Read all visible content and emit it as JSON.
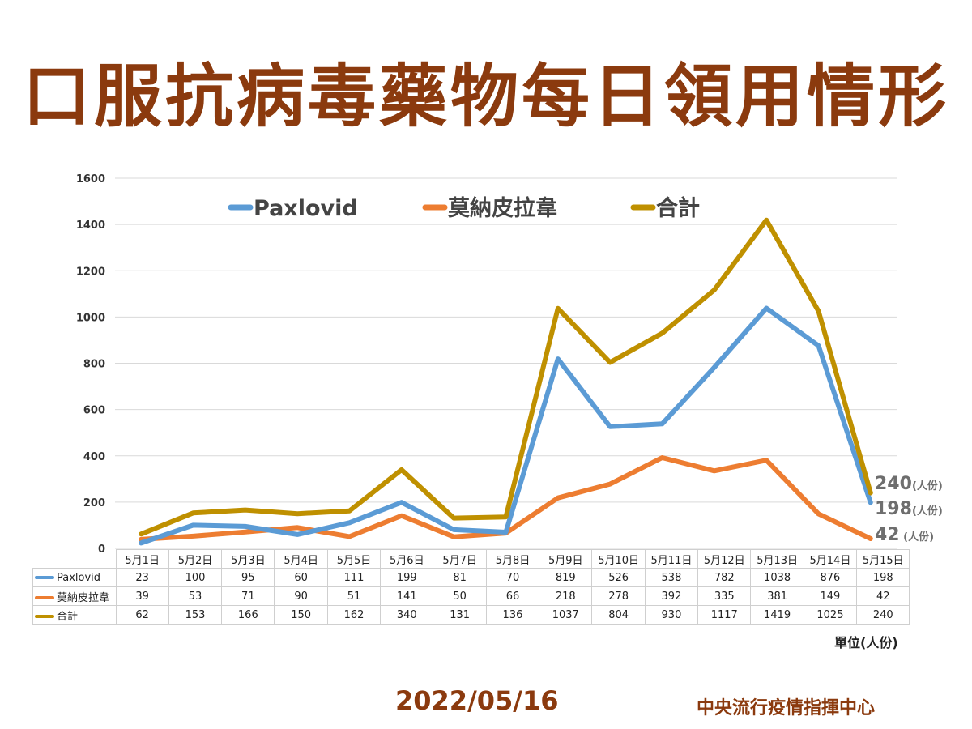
{
  "title": "口服抗病毒藥物每日領用情形",
  "date": "2022/05/16",
  "org": "中央流行疫情指揮中心",
  "unit_label": "單位(人份)",
  "colors": {
    "paxlovid": "#5b9bd5",
    "molnupiravir": "#ed7d31",
    "total": "#bf9000",
    "title": "#8b3a0e"
  },
  "chart_data": {
    "type": "line",
    "categories": [
      "5月1日",
      "5月2日",
      "5月3日",
      "5月4日",
      "5月5日",
      "5月6日",
      "5月7日",
      "5月8日",
      "5月9日",
      "5月10日",
      "5月11日",
      "5月12日",
      "5月13日",
      "5月14日",
      "5月15日"
    ],
    "series": [
      {
        "name": "Paxlovid",
        "values": [
          23,
          100,
          95,
          60,
          111,
          199,
          81,
          70,
          819,
          526,
          538,
          782,
          1038,
          876,
          198
        ]
      },
      {
        "name": "莫納皮拉韋",
        "values": [
          39,
          53,
          71,
          90,
          51,
          141,
          50,
          66,
          218,
          278,
          392,
          335,
          381,
          149,
          42
        ]
      },
      {
        "name": "合計",
        "values": [
          62,
          153,
          166,
          150,
          162,
          340,
          131,
          136,
          1037,
          804,
          930,
          1117,
          1419,
          1025,
          240
        ]
      }
    ],
    "yticks": [
      0,
      200,
      400,
      600,
      800,
      1000,
      1200,
      1400,
      1600
    ],
    "ylim": [
      0,
      1600
    ],
    "grid": true,
    "legend": "top",
    "end_labels": [
      {
        "value": "240",
        "unit": "(人份)"
      },
      {
        "value": "198",
        "unit": "(人份)"
      },
      {
        "value": "42",
        "unit": " (人份)"
      }
    ]
  }
}
